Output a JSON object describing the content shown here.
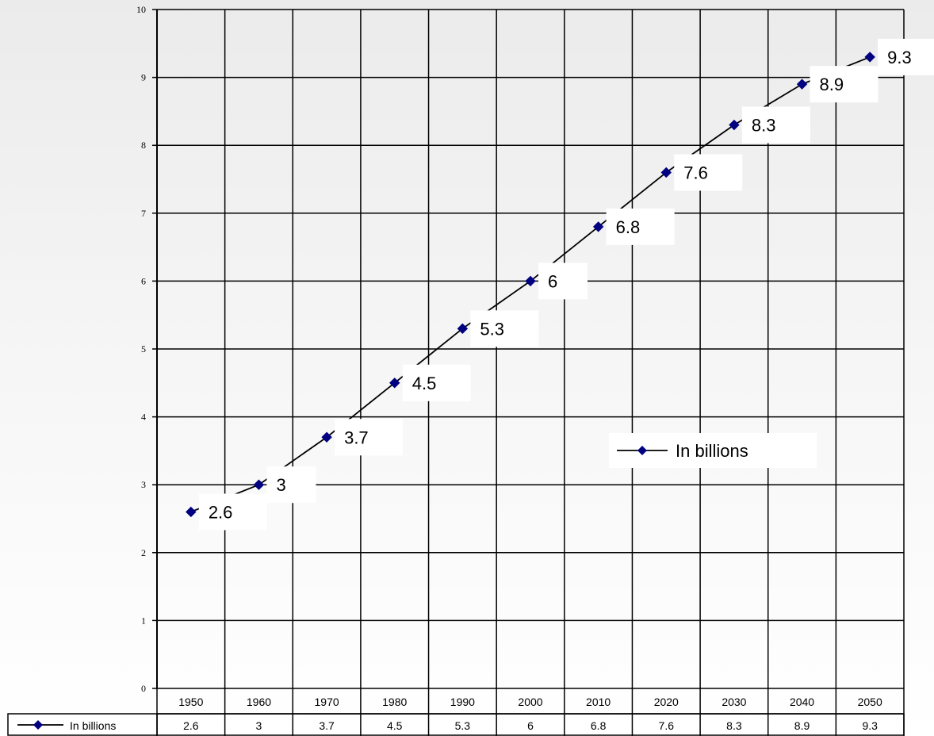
{
  "chart_data": {
    "type": "line",
    "title": "",
    "xlabel": "",
    "ylabel": "",
    "categories": [
      "1950",
      "1960",
      "1970",
      "1980",
      "1990",
      "2000",
      "2010",
      "2020",
      "2030",
      "2040",
      "2050"
    ],
    "series": [
      {
        "name": "In billions",
        "values": [
          2.6,
          3,
          3.7,
          4.5,
          5.3,
          6,
          6.8,
          7.6,
          8.3,
          8.9,
          9.3
        ],
        "data_labels": [
          "2.6",
          "3",
          "3.7",
          "4.5",
          "5.3",
          "6",
          "6.8",
          "7.6",
          "8.3",
          "8.9",
          "9.3"
        ],
        "line_color": "#000000",
        "marker": "diamond",
        "marker_color": "#000080"
      }
    ],
    "ylim": [
      0,
      10
    ],
    "yticks": [
      "0",
      "1",
      "2",
      "3",
      "4",
      "5",
      "6",
      "7",
      "8",
      "9",
      "10"
    ],
    "grid": true,
    "legend": {
      "entry": "In billions",
      "placement": "inside-right"
    },
    "data_table": {
      "legend_label": "In billions",
      "cells": [
        "2.6",
        "3",
        "3.7",
        "4.5",
        "5.3",
        "6",
        "6.8",
        "7.6",
        "8.3",
        "8.9",
        "9.3"
      ]
    }
  }
}
